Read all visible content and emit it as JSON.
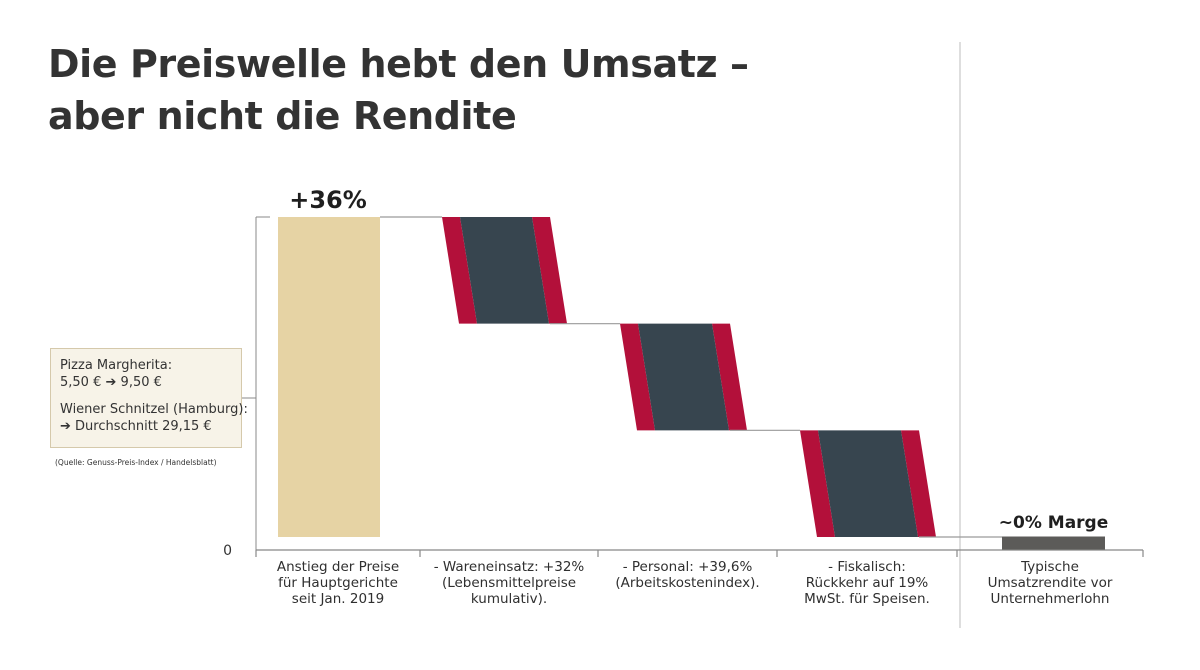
{
  "title": {
    "line1": "Die Preiswelle hebt den Umsatz –",
    "line2": "aber nicht die Rendite"
  },
  "colors": {
    "price_bar": "#e6d3a4",
    "cost_bar": "#37454f",
    "cost_edge": "#b3103a",
    "margin_bar": "#5c5b59",
    "axis": "#888888",
    "connector": "#9a9a9a",
    "divider": "#c8c8c8"
  },
  "note": {
    "item1_name": "Pizza Margherita:",
    "item1_from": "5,50 €",
    "item1_to": "9,50 €",
    "item2_name": "Wiener Schnitzel (Hamburg):",
    "item2_value": "Durchschnitt 29,15 €",
    "arrow_icon": "arrow-right"
  },
  "source": "(Quelle: Genuss-Preis-Index / Handelsblatt)",
  "chart_data": {
    "type": "waterfall",
    "ylim": [
      0,
      36
    ],
    "y_tick_labels": [
      "0"
    ],
    "steps": [
      {
        "label": [
          "Anstieg der Preise",
          "für Hauptgerichte",
          "seit Jan. 2019"
        ],
        "kind": "increase",
        "value": 36,
        "data_label": "+36%"
      },
      {
        "label": [
          "- Wareneinsatz: +32%",
          "(Lebensmittelpreise",
          "kumulativ)."
        ],
        "kind": "decrease",
        "value": -12
      },
      {
        "label": [
          "- Personal: +39,6%",
          "(Arbeitskostenindex)."
        ],
        "kind": "decrease",
        "value": -12
      },
      {
        "label": [
          "- Fiskalisch:",
          "Rückkehr auf 19%",
          "MwSt. für Speisen."
        ],
        "kind": "decrease",
        "value": -12
      },
      {
        "label": [
          "Typische",
          "Umsatzrendite vor",
          "Unternehmerlohn"
        ],
        "kind": "result",
        "value": 0,
        "data_label": "~0% Marge"
      }
    ]
  }
}
